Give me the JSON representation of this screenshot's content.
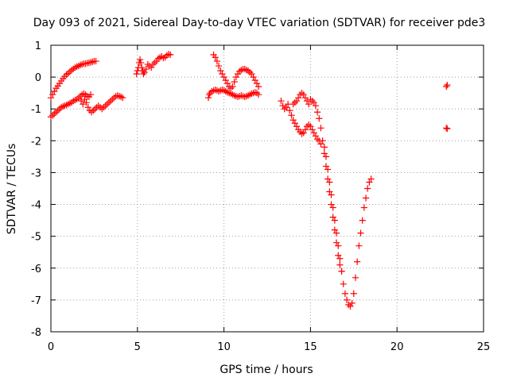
{
  "chart_data": {
    "type": "scatter",
    "title": "Day 093 of 2021, Sidereal Day-to-day VTEC variation (SDTVAR) for receiver pde3",
    "xlabel": "GPS time / hours",
    "ylabel": "SDTVAR / TECUs",
    "xlim": [
      0,
      25
    ],
    "ylim": [
      -8,
      1
    ],
    "x_ticks": [
      "0",
      "5",
      "10",
      "15",
      "20",
      "25"
    ],
    "y_ticks": [
      "1",
      "0",
      "-1",
      "-2",
      "-3",
      "-4",
      "-5",
      "-6",
      "-7",
      "-8"
    ],
    "x_tick_values": [
      0,
      5,
      10,
      15,
      20,
      25
    ],
    "y_tick_values": [
      1,
      0,
      -1,
      -2,
      -3,
      -4,
      -5,
      -6,
      -7,
      -8
    ],
    "grid": true,
    "marker": "+",
    "marker_color": "#ff0000",
    "points": [
      [
        0.0,
        -0.65
      ],
      [
        0.1,
        -0.55
      ],
      [
        0.2,
        -0.45
      ],
      [
        0.3,
        -0.35
      ],
      [
        0.4,
        -0.28
      ],
      [
        0.5,
        -0.2
      ],
      [
        0.6,
        -0.12
      ],
      [
        0.7,
        -0.05
      ],
      [
        0.8,
        0.02
      ],
      [
        0.9,
        0.08
      ],
      [
        1.0,
        0.12
      ],
      [
        1.1,
        0.17
      ],
      [
        1.2,
        0.22
      ],
      [
        1.3,
        0.26
      ],
      [
        1.4,
        0.3
      ],
      [
        1.5,
        0.33
      ],
      [
        1.6,
        0.35
      ],
      [
        1.7,
        0.38
      ],
      [
        1.8,
        0.4
      ],
      [
        1.9,
        0.42
      ],
      [
        2.0,
        0.42
      ],
      [
        2.1,
        0.44
      ],
      [
        2.2,
        0.45
      ],
      [
        2.3,
        0.46
      ],
      [
        2.4,
        0.48
      ],
      [
        2.5,
        0.5
      ],
      [
        2.6,
        0.5
      ],
      [
        0.0,
        -1.25
      ],
      [
        0.1,
        -1.2
      ],
      [
        0.2,
        -1.15
      ],
      [
        0.3,
        -1.1
      ],
      [
        0.4,
        -1.05
      ],
      [
        0.5,
        -1.0
      ],
      [
        0.6,
        -0.95
      ],
      [
        0.7,
        -0.92
      ],
      [
        0.8,
        -0.9
      ],
      [
        0.9,
        -0.88
      ],
      [
        1.0,
        -0.85
      ],
      [
        1.1,
        -0.82
      ],
      [
        1.2,
        -0.8
      ],
      [
        1.3,
        -0.75
      ],
      [
        1.4,
        -0.72
      ],
      [
        1.5,
        -0.7
      ],
      [
        1.6,
        -0.65
      ],
      [
        1.7,
        -0.6
      ],
      [
        1.8,
        -0.55
      ],
      [
        1.9,
        -0.52
      ],
      [
        2.0,
        -0.55
      ],
      [
        2.1,
        -0.6
      ],
      [
        2.2,
        -0.62
      ],
      [
        2.3,
        -0.55
      ],
      [
        1.75,
        -0.75
      ],
      [
        1.85,
        -0.85
      ],
      [
        1.95,
        -0.7
      ],
      [
        2.05,
        -0.8
      ],
      [
        2.15,
        -0.95
      ],
      [
        2.25,
        -1.05
      ],
      [
        2.35,
        -1.1
      ],
      [
        2.45,
        -1.05
      ],
      [
        2.55,
        -1.0
      ],
      [
        2.65,
        -0.95
      ],
      [
        2.75,
        -0.9
      ],
      [
        2.85,
        -0.95
      ],
      [
        2.95,
        -1.0
      ],
      [
        3.05,
        -0.95
      ],
      [
        3.15,
        -0.9
      ],
      [
        3.25,
        -0.85
      ],
      [
        3.35,
        -0.8
      ],
      [
        3.45,
        -0.75
      ],
      [
        3.55,
        -0.7
      ],
      [
        3.65,
        -0.65
      ],
      [
        3.75,
        -0.6
      ],
      [
        3.85,
        -0.58
      ],
      [
        3.95,
        -0.6
      ],
      [
        4.05,
        -0.62
      ],
      [
        4.15,
        -0.65
      ],
      [
        4.95,
        0.1
      ],
      [
        5.0,
        0.2
      ],
      [
        5.05,
        0.3
      ],
      [
        5.1,
        0.45
      ],
      [
        5.15,
        0.55
      ],
      [
        5.2,
        0.45
      ],
      [
        5.25,
        0.3
      ],
      [
        5.3,
        0.2
      ],
      [
        5.35,
        0.1
      ],
      [
        5.4,
        0.15
      ],
      [
        5.5,
        0.25
      ],
      [
        5.6,
        0.4
      ],
      [
        5.7,
        0.35
      ],
      [
        5.8,
        0.3
      ],
      [
        5.9,
        0.4
      ],
      [
        6.0,
        0.45
      ],
      [
        6.1,
        0.5
      ],
      [
        6.2,
        0.58
      ],
      [
        6.3,
        0.62
      ],
      [
        6.4,
        0.65
      ],
      [
        6.5,
        0.6
      ],
      [
        6.6,
        0.62
      ],
      [
        6.7,
        0.68
      ],
      [
        6.8,
        0.72
      ],
      [
        6.9,
        0.7
      ],
      [
        9.1,
        -0.65
      ],
      [
        9.15,
        -0.55
      ],
      [
        9.2,
        -0.5
      ],
      [
        9.3,
        -0.45
      ],
      [
        9.4,
        -0.42
      ],
      [
        9.5,
        -0.4
      ],
      [
        9.6,
        -0.42
      ],
      [
        9.7,
        -0.45
      ],
      [
        9.8,
        -0.42
      ],
      [
        9.9,
        -0.4
      ],
      [
        10.0,
        -0.42
      ],
      [
        10.1,
        -0.45
      ],
      [
        10.2,
        -0.48
      ],
      [
        10.3,
        -0.5
      ],
      [
        10.4,
        -0.52
      ],
      [
        10.5,
        -0.55
      ],
      [
        10.6,
        -0.58
      ],
      [
        10.7,
        -0.6
      ],
      [
        10.8,
        -0.62
      ],
      [
        10.9,
        -0.6
      ],
      [
        11.0,
        -0.58
      ],
      [
        11.1,
        -0.6
      ],
      [
        11.2,
        -0.62
      ],
      [
        11.3,
        -0.6
      ],
      [
        11.4,
        -0.58
      ],
      [
        11.5,
        -0.55
      ],
      [
        11.6,
        -0.52
      ],
      [
        11.7,
        -0.5
      ],
      [
        11.8,
        -0.48
      ],
      [
        11.9,
        -0.5
      ],
      [
        12.0,
        -0.55
      ],
      [
        9.4,
        0.7
      ],
      [
        9.5,
        0.62
      ],
      [
        9.6,
        0.5
      ],
      [
        9.7,
        0.35
      ],
      [
        9.8,
        0.2
      ],
      [
        9.9,
        0.1
      ],
      [
        10.0,
        0.0
      ],
      [
        10.1,
        -0.1
      ],
      [
        10.2,
        -0.2
      ],
      [
        10.3,
        -0.3
      ],
      [
        10.4,
        -0.35
      ],
      [
        10.5,
        -0.3
      ],
      [
        10.6,
        -0.15
      ],
      [
        10.7,
        0.0
      ],
      [
        10.8,
        0.1
      ],
      [
        10.9,
        0.18
      ],
      [
        11.0,
        0.22
      ],
      [
        11.1,
        0.25
      ],
      [
        11.2,
        0.25
      ],
      [
        11.3,
        0.22
      ],
      [
        11.4,
        0.2
      ],
      [
        11.5,
        0.15
      ],
      [
        11.6,
        0.1
      ],
      [
        11.7,
        0.0
      ],
      [
        11.8,
        -0.1
      ],
      [
        11.9,
        -0.2
      ],
      [
        12.0,
        -0.3
      ],
      [
        13.3,
        -0.75
      ],
      [
        13.4,
        -0.9
      ],
      [
        13.5,
        -1.0
      ],
      [
        13.6,
        -0.95
      ],
      [
        13.7,
        -0.85
      ],
      [
        13.8,
        -1.05
      ],
      [
        13.9,
        -1.2
      ],
      [
        14.0,
        -1.35
      ],
      [
        14.1,
        -1.45
      ],
      [
        14.2,
        -1.55
      ],
      [
        14.3,
        -1.65
      ],
      [
        14.4,
        -1.72
      ],
      [
        14.5,
        -1.78
      ],
      [
        14.6,
        -1.75
      ],
      [
        14.7,
        -1.65
      ],
      [
        14.8,
        -1.55
      ],
      [
        14.9,
        -1.5
      ],
      [
        15.0,
        -1.55
      ],
      [
        15.1,
        -1.65
      ],
      [
        15.2,
        -1.75
      ],
      [
        15.3,
        -1.85
      ],
      [
        15.4,
        -1.95
      ],
      [
        15.5,
        -2.0
      ],
      [
        15.6,
        -2.1
      ],
      [
        14.0,
        -0.85
      ],
      [
        14.1,
        -0.8
      ],
      [
        14.2,
        -0.75
      ],
      [
        14.3,
        -0.65
      ],
      [
        14.4,
        -0.55
      ],
      [
        14.5,
        -0.5
      ],
      [
        14.6,
        -0.55
      ],
      [
        14.7,
        -0.65
      ],
      [
        14.8,
        -0.75
      ],
      [
        14.9,
        -0.85
      ],
      [
        15.0,
        -0.7
      ],
      [
        15.1,
        -0.75
      ],
      [
        15.2,
        -0.8
      ],
      [
        15.3,
        -0.9
      ],
      [
        15.4,
        -1.1
      ],
      [
        15.5,
        -1.3
      ],
      [
        15.6,
        -1.6
      ],
      [
        15.7,
        -2.0
      ],
      [
        15.8,
        -2.4
      ],
      [
        15.9,
        -2.8
      ],
      [
        16.0,
        -3.2
      ],
      [
        16.1,
        -3.6
      ],
      [
        16.2,
        -4.0
      ],
      [
        16.3,
        -4.4
      ],
      [
        16.4,
        -4.8
      ],
      [
        16.5,
        -5.2
      ],
      [
        16.6,
        -5.6
      ],
      [
        16.7,
        -5.9
      ],
      [
        16.8,
        -6.1
      ],
      [
        15.8,
        -2.2
      ],
      [
        15.9,
        -2.5
      ],
      [
        16.0,
        -2.9
      ],
      [
        16.1,
        -3.3
      ],
      [
        16.2,
        -3.7
      ],
      [
        16.3,
        -4.1
      ],
      [
        16.4,
        -4.5
      ],
      [
        16.5,
        -4.9
      ],
      [
        16.6,
        -5.3
      ],
      [
        16.7,
        -5.7
      ],
      [
        16.8,
        -6.1
      ],
      [
        16.9,
        -6.5
      ],
      [
        17.0,
        -6.8
      ],
      [
        17.1,
        -7.0
      ],
      [
        17.2,
        -7.15
      ],
      [
        17.3,
        -7.2
      ],
      [
        17.4,
        -7.1
      ],
      [
        17.5,
        -6.8
      ],
      [
        17.6,
        -6.3
      ],
      [
        17.7,
        -5.8
      ],
      [
        17.8,
        -5.3
      ],
      [
        17.9,
        -4.9
      ],
      [
        18.0,
        -4.5
      ],
      [
        18.1,
        -4.1
      ],
      [
        18.2,
        -3.8
      ],
      [
        18.3,
        -3.5
      ],
      [
        18.4,
        -3.3
      ],
      [
        18.5,
        -3.2
      ],
      [
        22.85,
        -0.3
      ],
      [
        22.9,
        -0.25
      ],
      [
        22.85,
        -1.6
      ],
      [
        22.9,
        -1.62
      ]
    ]
  }
}
